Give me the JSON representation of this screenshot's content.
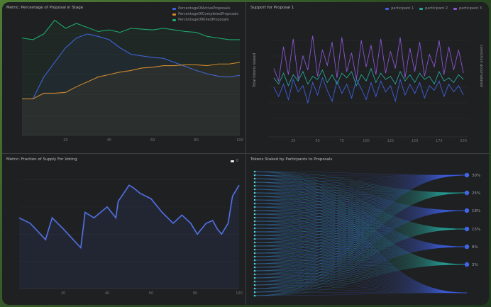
{
  "colors": {
    "blue": "#3f5fe0",
    "orange": "#d9852a",
    "green": "#1fa86d",
    "purple": "#8a54d6",
    "teal": "#27a39a",
    "cyan": "#4fd0d6",
    "node": "#3f66e8"
  },
  "chart_data": [
    {
      "type": "line",
      "title": "Metric: Percentage of Proposal in Stage",
      "x": [
        0,
        5,
        10,
        15,
        20,
        25,
        30,
        35,
        40,
        45,
        50,
        55,
        60,
        65,
        70,
        75,
        80,
        85,
        90,
        95,
        100
      ],
      "xticks": [
        20,
        40,
        60,
        80,
        100
      ],
      "ylim": [
        0,
        1.45
      ],
      "series": [
        {
          "name": "PercentageOfActiveProposals",
          "values": [
            0.45,
            0.45,
            0.72,
            0.9,
            1.08,
            1.2,
            1.25,
            1.22,
            1.18,
            1.08,
            1.0,
            0.98,
            0.96,
            0.95,
            0.9,
            0.85,
            0.8,
            0.76,
            0.73,
            0.72,
            0.74
          ]
        },
        {
          "name": "PercentageOfCompletedProposals",
          "values": [
            0.45,
            0.45,
            0.52,
            0.52,
            0.53,
            0.6,
            0.66,
            0.72,
            0.75,
            0.78,
            0.8,
            0.83,
            0.84,
            0.86,
            0.86,
            0.87,
            0.87,
            0.86,
            0.88,
            0.88,
            0.9
          ]
        },
        {
          "name": "PercentageOfKilledProposals",
          "values": [
            1.2,
            1.18,
            1.25,
            1.42,
            1.32,
            1.38,
            1.33,
            1.28,
            1.3,
            1.27,
            1.32,
            1.31,
            1.3,
            1.32,
            1.3,
            1.28,
            1.27,
            1.22,
            1.2,
            1.18,
            1.18
          ]
        }
      ]
    },
    {
      "type": "line",
      "title": "Support for Proposal 1",
      "ylabel": "Total tokens staked",
      "y2label": "conviction accumulated",
      "xticks": [
        25,
        50,
        75,
        100,
        125,
        150,
        175,
        200
      ],
      "xlim": [
        0,
        205
      ],
      "series": [
        {
          "name": "participant 1",
          "values": [
            0.0,
            -0.6,
            0.2,
            -0.8,
            0.5,
            -0.3,
            0.1,
            -1.0,
            0.3,
            -0.5,
            0.6,
            -0.2,
            -0.9,
            0.4,
            -0.4,
            0.2,
            -0.7,
            0.5,
            -0.1,
            -0.8,
            0.3,
            -0.6,
            0.4,
            -0.3,
            0.1,
            -0.9,
            0.5,
            -0.5,
            0.2,
            -0.4,
            0.3,
            -0.7,
            0.1,
            -0.2,
            0.4,
            -0.6,
            0.2,
            -0.3,
            0.1,
            -0.5
          ]
        },
        {
          "name": "participant 2",
          "values": [
            0.6,
            0.2,
            0.9,
            0.1,
            0.8,
            0.4,
            1.0,
            0.2,
            0.7,
            0.5,
            1.1,
            0.3,
            0.8,
            0.2,
            0.9,
            0.6,
            1.0,
            0.1,
            0.8,
            0.4,
            1.2,
            0.3,
            0.9,
            0.5,
            0.7,
            0.2,
            1.0,
            0.4,
            0.8,
            0.3,
            0.9,
            0.5,
            0.7,
            0.2,
            1.0,
            0.4,
            0.6,
            0.3,
            0.8,
            0.5
          ]
        },
        {
          "name": "participant 3",
          "values": [
            1.2,
            0.4,
            2.6,
            0.8,
            3.1,
            0.5,
            2.0,
            1.1,
            3.3,
            0.7,
            2.4,
            1.4,
            2.9,
            0.6,
            3.2,
            1.0,
            2.2,
            0.5,
            3.0,
            1.3,
            2.7,
            0.8,
            3.1,
            0.9,
            2.3,
            1.2,
            3.2,
            0.6,
            2.5,
            1.0,
            2.9,
            0.7,
            2.1,
            1.3,
            3.0,
            0.8,
            2.6,
            1.1,
            2.4,
            0.9
          ]
        }
      ]
    },
    {
      "type": "area",
      "title": "Metric: Fraction of Supply For Voting",
      "legend": "0",
      "xticks": [
        20,
        40,
        60,
        80,
        100
      ],
      "ylim": [
        0.9,
        1.115
      ],
      "x": [
        0,
        5,
        12,
        15,
        20,
        28,
        30,
        34,
        40,
        44,
        45,
        50,
        52,
        55,
        60,
        65,
        70,
        74,
        78,
        81,
        85,
        88,
        90,
        92,
        95,
        97,
        100
      ],
      "values": [
        1.03,
        1.02,
        0.99,
        1.03,
        1.01,
        0.975,
        1.04,
        1.03,
        1.05,
        1.03,
        1.06,
        1.09,
        1.085,
        1.075,
        1.065,
        1.04,
        1.02,
        1.035,
        1.02,
        1.0,
        1.02,
        1.025,
        1.01,
        1.0,
        1.02,
        1.07,
        1.09
      ]
    },
    {
      "type": "sankey",
      "title": "Tokens Staked by Particpants to Proposals",
      "participants": 36,
      "targets": [
        "30%",
        "25%",
        "18%",
        "15%",
        "8%",
        "3%",
        ""
      ]
    }
  ]
}
